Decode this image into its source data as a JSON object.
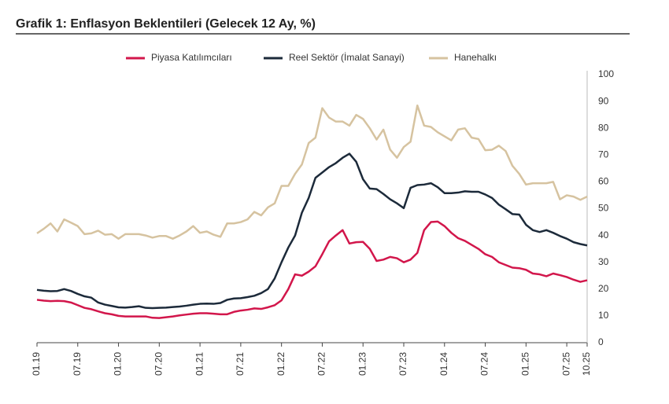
{
  "chart_data": {
    "type": "line",
    "title": "Grafik 1: Enflasyon Beklentileri (Gelecek 12 Ay, %)",
    "categories": [
      "01.19",
      null,
      null,
      null,
      null,
      null,
      "07.19",
      null,
      null,
      null,
      null,
      null,
      "01.20",
      null,
      null,
      null,
      null,
      null,
      "07.20",
      null,
      null,
      null,
      null,
      null,
      "01.21",
      null,
      null,
      null,
      null,
      null,
      "07.21",
      null,
      null,
      null,
      null,
      null,
      "01.22",
      null,
      null,
      null,
      null,
      null,
      "07.22",
      null,
      null,
      null,
      null,
      null,
      "01.23",
      null,
      null,
      null,
      null,
      null,
      "07.23",
      null,
      null,
      null,
      null,
      null,
      "01.24",
      null,
      null,
      null,
      null,
      null,
      "07.24",
      null,
      null,
      null,
      null,
      null,
      "01.25",
      null,
      null,
      null,
      null,
      null,
      "07.25",
      null,
      null,
      "10.25"
    ],
    "series": [
      {
        "name": "Piyasa Katılımcıları",
        "color": "#d2164b",
        "values": [
          16,
          15.7,
          15.5,
          15.6,
          15.5,
          15,
          14,
          13,
          12.5,
          11.7,
          11,
          10.6,
          10,
          9.8,
          9.8,
          9.8,
          9.8,
          9.3,
          9.2,
          9.5,
          9.8,
          10.2,
          10.5,
          10.8,
          11,
          11,
          10.8,
          10.6,
          10.6,
          11.5,
          12,
          12.3,
          12.8,
          12.6,
          13.2,
          14,
          15.8,
          20,
          25.5,
          25,
          26.5,
          28.5,
          33,
          37.8,
          40,
          42,
          37,
          37.5,
          37.6,
          35,
          30.5,
          31,
          32,
          31.5,
          30,
          31,
          33.5,
          42,
          45,
          45.2,
          43.5,
          41,
          39,
          38,
          36.5,
          35,
          33,
          32,
          30,
          29,
          28,
          27.8,
          27.2,
          25.8,
          25.5,
          24.8,
          25.8,
          25.2,
          24.5,
          23.5,
          22.7,
          23.3
        ]
      },
      {
        "name": "Reel Sektör (İmalat Sanayi)",
        "color": "#1c2a3a",
        "values": [
          19.7,
          19.4,
          19.2,
          19.3,
          20,
          19.3,
          18.2,
          17.3,
          16.8,
          15,
          14.2,
          13.7,
          13.2,
          13.1,
          13.3,
          13.6,
          13,
          12.9,
          13,
          13.1,
          13.3,
          13.5,
          13.8,
          14.2,
          14.5,
          14.6,
          14.5,
          14.8,
          16,
          16.5,
          16.6,
          17,
          17.5,
          18.5,
          20,
          24,
          30,
          35.5,
          40,
          48.5,
          54,
          61.5,
          63.5,
          65.5,
          67,
          69,
          70.5,
          67.5,
          61,
          57.5,
          57.3,
          55.5,
          53.5,
          52,
          50.2,
          57.8,
          58.8,
          59,
          59.5,
          58,
          55.8,
          55.8,
          56,
          56.5,
          56.3,
          56.3,
          55.3,
          54,
          51.5,
          49.8,
          48,
          47.8,
          44,
          42,
          41.3,
          42,
          41,
          39.8,
          38.8,
          37.5,
          36.8,
          36.3
        ]
      },
      {
        "name": "Hanehalkı",
        "color": "#d6c3a0",
        "values": [
          40.8,
          42.5,
          44.5,
          41.5,
          46,
          44.8,
          43.5,
          40.5,
          40.8,
          41.8,
          40.3,
          40.5,
          38.8,
          40.5,
          40.5,
          40.5,
          40,
          39.2,
          39.8,
          39.8,
          38.8,
          40,
          41.5,
          43.5,
          41,
          41.5,
          40.3,
          39.5,
          44.5,
          44.5,
          45,
          46,
          48.8,
          47.5,
          50.5,
          52,
          58.5,
          58.5,
          63,
          66.5,
          74.5,
          76.5,
          87.5,
          84,
          82.5,
          82.5,
          81,
          85,
          83.5,
          80,
          75.8,
          79.5,
          72,
          69,
          73,
          75,
          88.5,
          81,
          80.5,
          78.5,
          77,
          75.5,
          79.5,
          80,
          76.5,
          76,
          71.8,
          72,
          73.5,
          71.5,
          66,
          63,
          59,
          59.5,
          59.5,
          59.5,
          60,
          53.5,
          55,
          54.5,
          53.3,
          54.5
        ]
      }
    ],
    "ylim": [
      0,
      100
    ],
    "yticks": [
      0,
      10,
      20,
      30,
      40,
      50,
      60,
      70,
      80,
      90,
      100
    ],
    "grid": false
  }
}
